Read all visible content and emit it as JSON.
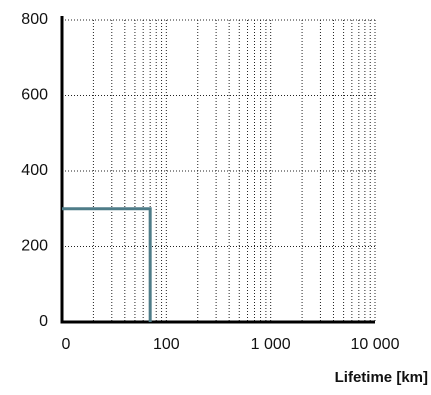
{
  "chart_data": {
    "type": "line",
    "x_label": "Lifetime [km]",
    "x": [
      10,
      70,
      70
    ],
    "series": [
      {
        "color": "#4e7c88",
        "values": [
          300,
          300,
          0
        ]
      }
    ],
    "xscale": "log",
    "xlim": [
      10,
      10000
    ],
    "xticks": [
      {
        "value": 10,
        "label": "0"
      },
      100,
      {
        "value": 1000,
        "label": "1 000"
      },
      {
        "value": 10000,
        "label": "10 000"
      }
    ],
    "ylim": [
      0,
      800
    ],
    "yticks": [
      0,
      200,
      400,
      600,
      800
    ],
    "grid": true
  }
}
